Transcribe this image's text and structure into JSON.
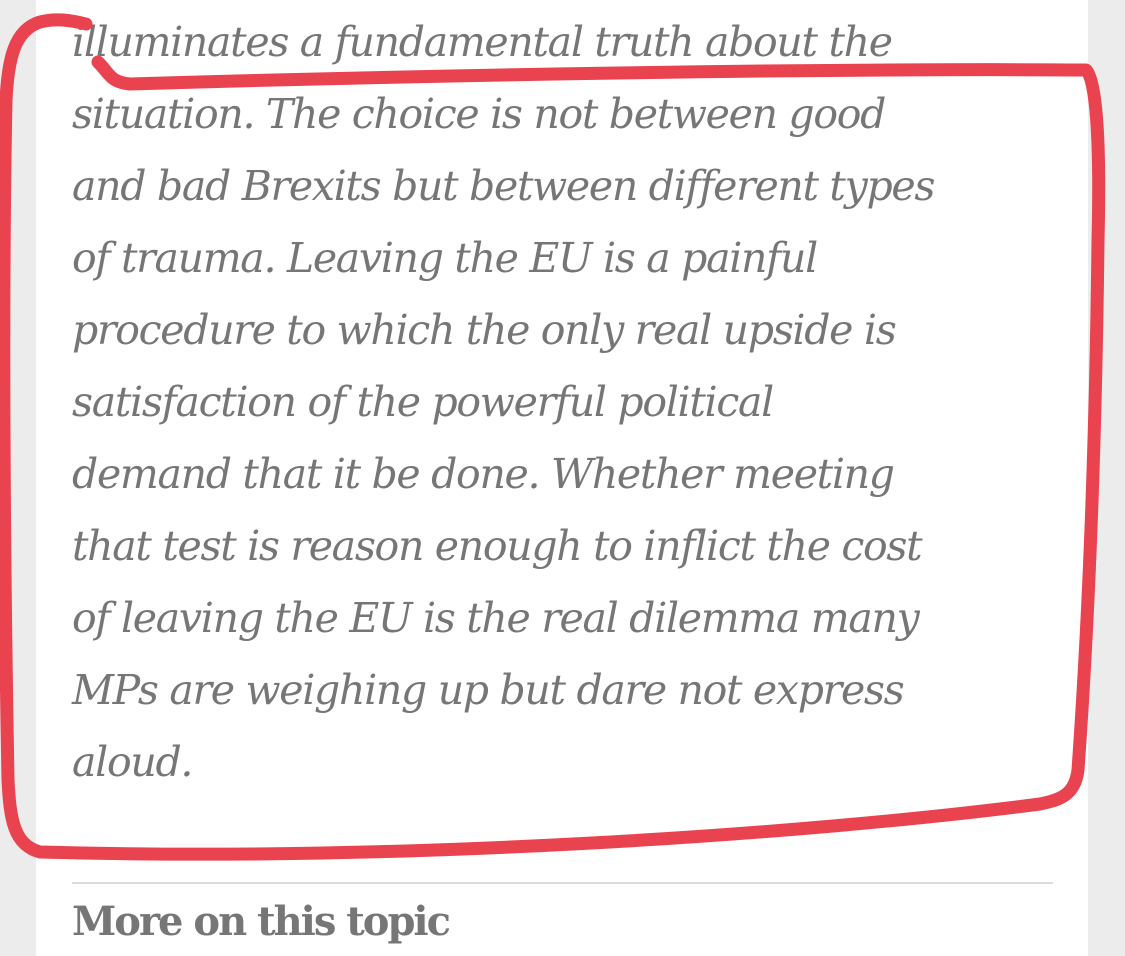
{
  "article": {
    "quote_lines": [
      "illuminates a fundamental truth about the",
      "situation. The choice is not between good",
      "and bad Brexits but between different types",
      "of trauma. Leaving the EU is a painful",
      "procedure to which the only real upside is",
      "satisfaction of the powerful political",
      "demand that it be done. Whether meeting",
      "that test is reason enough to inflict the cost",
      "of leaving the EU is the real dilemma many",
      "MPs are weighing up but dare not express",
      "aloud."
    ]
  },
  "more_section": {
    "heading": "More on this topic"
  },
  "colors": {
    "page_background": "#ececec",
    "content_background": "#ffffff",
    "text": "#767676",
    "annotation_stroke": "#e8434f",
    "divider": "#dcdcdc"
  }
}
